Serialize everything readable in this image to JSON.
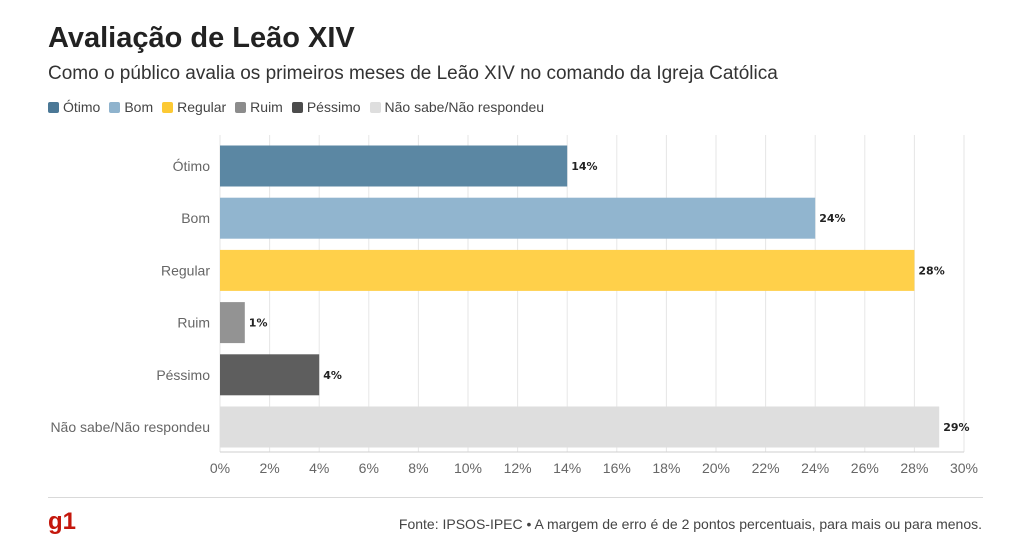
{
  "title": "Avaliação de Leão XIV",
  "subtitle": "Como o público avalia os primeiros meses de Leão XIV no comando da Igreja Católica",
  "legend": [
    {
      "label": "Ótimo",
      "color": "#4b7896"
    },
    {
      "label": "Bom",
      "color": "#8fb3cd"
    },
    {
      "label": "Regular",
      "color": "#fcc934"
    },
    {
      "label": "Ruim",
      "color": "#8c8c8c"
    },
    {
      "label": "Péssimo",
      "color": "#4c4c4c"
    },
    {
      "label": "Não sabe/Não respondeu",
      "color": "#dedede"
    }
  ],
  "chart_data": {
    "type": "bar",
    "orientation": "horizontal",
    "categories": [
      "Ótimo",
      "Bom",
      "Regular",
      "Ruim",
      "Péssimo",
      "Não sabe/Não respondeu"
    ],
    "values": [
      14,
      24,
      28,
      1,
      4,
      29
    ],
    "data_labels": [
      "14%",
      "24%",
      "28%",
      "1%",
      "4%",
      "29%"
    ],
    "colors": [
      "#5b87a3",
      "#91b5cf",
      "#ffd04a",
      "#939393",
      "#5e5e5e",
      "#dedede"
    ],
    "xlim": [
      0,
      30
    ],
    "x_ticks": [
      "0%",
      "2%",
      "4%",
      "6%",
      "8%",
      "10%",
      "12%",
      "14%",
      "16%",
      "18%",
      "20%",
      "22%",
      "24%",
      "26%",
      "28%",
      "30%"
    ],
    "grid": true
  },
  "footer": {
    "logo": "g1",
    "source": "Fonte: IPSOS-IPEC • A margem de erro é de 2 pontos percentuais, para mais ou para menos."
  }
}
